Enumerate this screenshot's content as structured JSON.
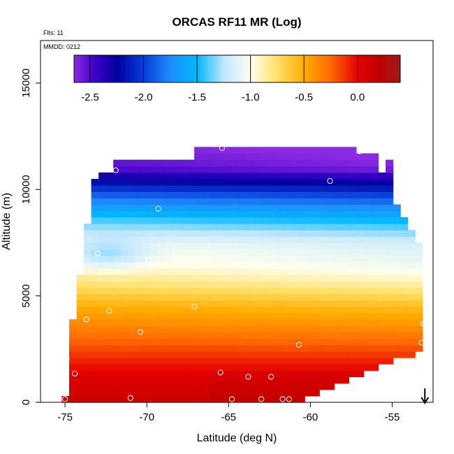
{
  "chart_data": {
    "type": "heatmap",
    "title": "ORCAS RF11 MR (Log)",
    "flights_label": "Flts: 11",
    "date_label": "MMDD: 0212",
    "xlabel": "Latitude (deg N)",
    "ylabel": "Altitude (m)",
    "xlim": [
      -76.5,
      -52.5
    ],
    "ylim": [
      0,
      17000
    ],
    "xticks": [
      -75,
      -70,
      -65,
      -60,
      -55
    ],
    "xtick_labels": [
      "-75",
      "-70",
      "-65",
      "-60",
      "-55"
    ],
    "yticks": [
      0,
      5000,
      10000,
      15000
    ],
    "ytick_labels": [
      "0",
      "5000",
      "10000",
      "15000"
    ],
    "colorbar": {
      "range": [
        -2.65,
        0.4
      ],
      "ticks": [
        -2.5,
        -2.0,
        -1.5,
        -1.0,
        -0.5,
        0.0
      ],
      "tick_labels": [
        "-2.5",
        "-2.0",
        "-1.5",
        "-1.0",
        "-0.5",
        "0.0"
      ],
      "stops": [
        {
          "v": -2.65,
          "color": "#8a2be2"
        },
        {
          "v": -2.45,
          "color": "#3a00c8"
        },
        {
          "v": -2.25,
          "color": "#00009e"
        },
        {
          "v": -2.0,
          "color": "#0a3cd8"
        },
        {
          "v": -1.75,
          "color": "#1e8cff"
        },
        {
          "v": -1.5,
          "color": "#00b8ff"
        },
        {
          "v": -1.25,
          "color": "#bfe6ff"
        },
        {
          "v": -1.0,
          "color": "#ffffee"
        },
        {
          "v": -0.75,
          "color": "#ffe066"
        },
        {
          "v": -0.5,
          "color": "#ffae00"
        },
        {
          "v": -0.25,
          "color": "#ff6a00"
        },
        {
          "v": 0.0,
          "color": "#e60000"
        },
        {
          "v": 0.2,
          "color": "#c00000"
        },
        {
          "v": 0.4,
          "color": "#9e1a1a"
        }
      ]
    },
    "coverage": {
      "bottom_left_lat": -75.0,
      "top_left_lat": -73.8,
      "top_alt": 11900,
      "right_lat": -53.0,
      "right_alt_max": 7000,
      "right_alt_min": 2500,
      "bottom_right_lat": -61.0
    },
    "profile": [
      {
        "alt": 0,
        "value": 0.15
      },
      {
        "alt": 1500,
        "value": 0.0
      },
      {
        "alt": 3000,
        "value": -0.25
      },
      {
        "alt": 4500,
        "value": -0.5
      },
      {
        "alt": 5500,
        "value": -0.75
      },
      {
        "alt": 6500,
        "value": -0.95
      },
      {
        "alt": 7500,
        "value": -1.05
      },
      {
        "alt": 8300,
        "value": -1.3
      },
      {
        "alt": 9000,
        "value": -1.55
      },
      {
        "alt": 9800,
        "value": -1.9
      },
      {
        "alt": 10400,
        "value": -2.2
      },
      {
        "alt": 11000,
        "value": -2.5
      },
      {
        "alt": 12000,
        "value": -2.6
      }
    ],
    "sample_points": [
      {
        "lat": -75.0,
        "alt": 150
      },
      {
        "lat": -74.9,
        "alt": 2000
      },
      {
        "lat": -74.4,
        "alt": 1350
      },
      {
        "lat": -73.7,
        "alt": 3900
      },
      {
        "lat": -73.0,
        "alt": 7000
      },
      {
        "lat": -72.3,
        "alt": 4300
      },
      {
        "lat": -71.9,
        "alt": 10900
      },
      {
        "lat": -71.0,
        "alt": 200
      },
      {
        "lat": -70.4,
        "alt": 3300
      },
      {
        "lat": -69.9,
        "alt": 6700
      },
      {
        "lat": -69.3,
        "alt": 9100
      },
      {
        "lat": -67.1,
        "alt": 4500
      },
      {
        "lat": -65.5,
        "alt": 1400
      },
      {
        "lat": -65.4,
        "alt": 11950
      },
      {
        "lat": -64.8,
        "alt": 150
      },
      {
        "lat": -63.8,
        "alt": 1200
      },
      {
        "lat": -63.0,
        "alt": 150
      },
      {
        "lat": -62.4,
        "alt": 1200
      },
      {
        "lat": -61.7,
        "alt": 150
      },
      {
        "lat": -61.3,
        "alt": 150
      },
      {
        "lat": -60.7,
        "alt": 2700
      },
      {
        "lat": -58.8,
        "alt": 10400
      },
      {
        "lat": -57.0,
        "alt": 11800
      },
      {
        "lat": -56.3,
        "alt": 11950
      },
      {
        "lat": -53.1,
        "alt": 3700
      },
      {
        "lat": -53.2,
        "alt": 2800
      }
    ],
    "marker": {
      "lat": -53.0,
      "symbol": "down-arrow"
    }
  }
}
